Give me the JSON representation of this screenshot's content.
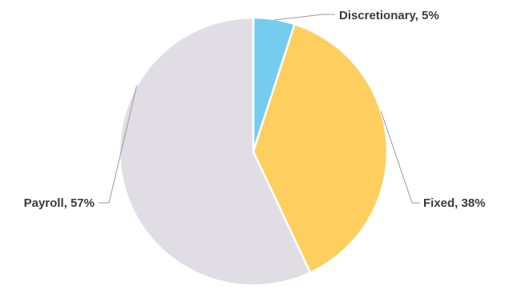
{
  "chart_data": {
    "type": "pie",
    "slices": [
      {
        "label": "Discretionary",
        "value": 5,
        "display": "Discretionary, 5%",
        "color": "#74cdef"
      },
      {
        "label": "Fixed",
        "value": 38,
        "display": "Fixed, 38%",
        "color": "#fece5e"
      },
      {
        "label": "Payroll",
        "value": 57,
        "display": "Payroll, 57%",
        "color": "#e1dde4"
      }
    ],
    "unit": "%",
    "start_angle_deg": 0,
    "direction": "clockwise",
    "slice_border_color": "#ffffff",
    "legend": "none",
    "labels": "outside with leader lines"
  }
}
